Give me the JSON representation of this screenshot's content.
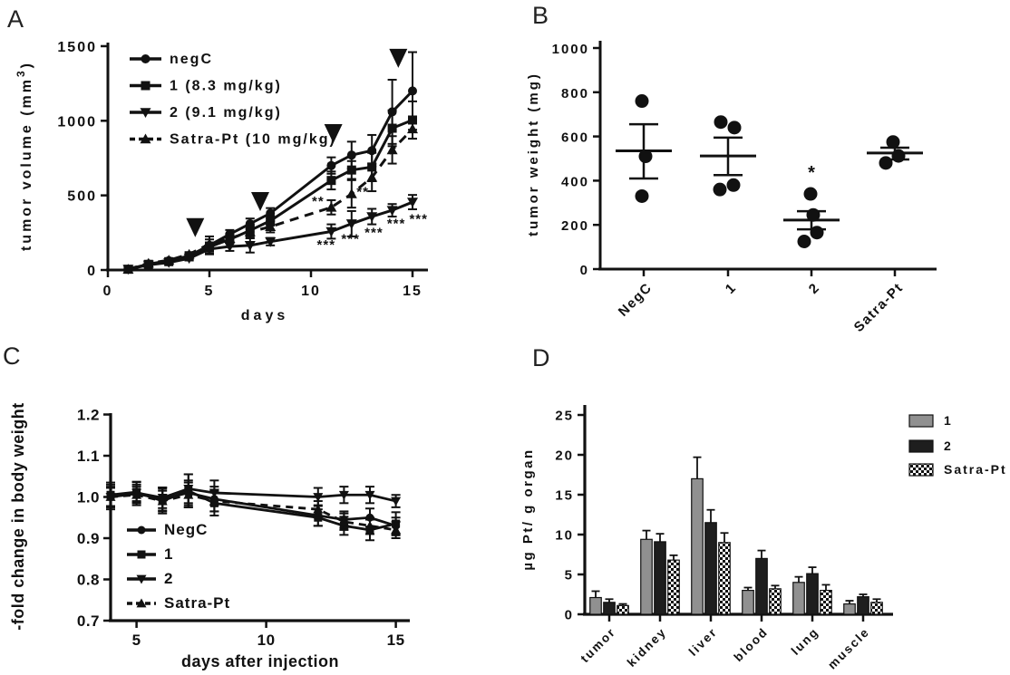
{
  "figure": {
    "background": "#ffffff",
    "panel_labels": [
      "A",
      "B",
      "C",
      "D"
    ]
  },
  "colors": {
    "ink": "#111111",
    "bar_gray": "#909090",
    "bar_dark": "#1e1e1e",
    "checker_bg": "#ffffff"
  },
  "chart_data": [
    {
      "panel": "A",
      "type": "line",
      "name": "tumor-volume",
      "xlabel": "days",
      "ylabel": "tumor volume (mm³)",
      "ylabel_rich": {
        "pre": "tumor volume (mm",
        "sup": "3",
        "post": ")"
      },
      "xlim": [
        0,
        15.7
      ],
      "ylim": [
        0,
        1500
      ],
      "xticks": [
        0,
        5,
        10,
        15
      ],
      "xtick_labels": [
        "0",
        "5",
        "10",
        "15"
      ],
      "yticks": [
        0,
        500,
        1000,
        1500
      ],
      "ytick_labels": [
        "0",
        "500",
        "1000",
        "1500"
      ],
      "grid": false,
      "legend_position": "top-left-inside",
      "x": [
        1,
        2,
        3,
        4,
        5,
        6,
        7,
        8,
        11,
        12,
        13,
        14,
        15
      ],
      "series": [
        {
          "name": "negC",
          "marker": "circle",
          "line": "solid",
          "values": [
            5,
            40,
            62,
            95,
            165,
            240,
            310,
            380,
            700,
            770,
            800,
            1060,
            1200
          ],
          "errors": [
            0,
            10,
            12,
            18,
            60,
            28,
            35,
            35,
            55,
            90,
            105,
            215,
            260
          ]
        },
        {
          "name": "1 (8.3 mg/kg)",
          "marker": "square",
          "line": "solid",
          "values": [
            5,
            38,
            56,
            88,
            155,
            205,
            265,
            330,
            600,
            670,
            690,
            950,
            1005
          ],
          "errors": [
            0,
            8,
            10,
            15,
            30,
            25,
            40,
            32,
            60,
            60,
            95,
            120,
            125
          ]
        },
        {
          "name": "2 (9.1 mg/kg)",
          "marker": "triangle-down",
          "line": "solid",
          "values": [
            5,
            34,
            50,
            78,
            140,
            158,
            165,
            190,
            258,
            310,
            358,
            400,
            455
          ],
          "errors": [
            0,
            8,
            10,
            14,
            28,
            30,
            48,
            25,
            48,
            85,
            52,
            42,
            48
          ]
        },
        {
          "name": "Satra-Pt (10 mg/kg)",
          "marker": "triangle-up",
          "line": "dashed",
          "values": [
            5,
            45,
            66,
            105,
            175,
            212,
            255,
            290,
            420,
            510,
            620,
            805,
            945
          ],
          "errors": [
            0,
            8,
            10,
            15,
            30,
            30,
            42,
            38,
            48,
            92,
            92,
            92,
            65
          ]
        }
      ],
      "treatment_arrows": [
        {
          "x": 4.3,
          "tip_y": 220
        },
        {
          "x": 7.5,
          "tip_y": 395
        },
        {
          "x": 11.1,
          "tip_y": 850
        },
        {
          "x": 14.3,
          "tip_y": 1355
        }
      ],
      "annotations": [
        {
          "text": "**",
          "x": 10.35,
          "y": 430
        },
        {
          "text": "**",
          "x": 12.55,
          "y": 495
        },
        {
          "text": "***",
          "x": 10.75,
          "y": 140
        },
        {
          "text": "***",
          "x": 11.95,
          "y": 180
        },
        {
          "text": "***",
          "x": 13.1,
          "y": 222
        },
        {
          "text": "***",
          "x": 14.2,
          "y": 282
        },
        {
          "text": "***",
          "x": 15.3,
          "y": 312
        }
      ],
      "legend": [
        "negC",
        "1 (8.3 mg/kg)",
        "2 (9.1 mg/kg)",
        "Satra-Pt (10 mg/kg)"
      ]
    },
    {
      "panel": "B",
      "type": "scatter",
      "name": "tumor-weight",
      "xlabel": "",
      "ylabel": "tumor weight (mg)",
      "ylim": [
        0,
        1000
      ],
      "yticks": [
        0,
        200,
        400,
        600,
        800,
        1000
      ],
      "ytick_labels": [
        "0",
        "200",
        "400",
        "600",
        "800",
        "1000"
      ],
      "grid": false,
      "categories": [
        "NegC",
        "1",
        "2",
        "Satra-Pt"
      ],
      "groups": [
        {
          "name": "NegC",
          "points": [
            760,
            510,
            330
          ],
          "mean": 535,
          "sem_low": 410,
          "sem_high": 655
        },
        {
          "name": "1",
          "points": [
            665,
            640,
            360,
            380
          ],
          "mean": 512,
          "sem_low": 425,
          "sem_high": 595
        },
        {
          "name": "2",
          "points": [
            340,
            245,
            165,
            125
          ],
          "mean": 222,
          "sem_low": 180,
          "sem_high": 262,
          "sig": "*",
          "sig_y": 410
        },
        {
          "name": "Satra-Pt",
          "points": [
            575,
            512,
            480
          ],
          "mean": 525,
          "sem_low": 496,
          "sem_high": 549
        }
      ]
    },
    {
      "panel": "C",
      "type": "line",
      "name": "body-weight-change",
      "xlabel": "days after injection",
      "ylabel": "-fold change in body weight",
      "xlim": [
        3.8,
        16
      ],
      "ylim": [
        0.7,
        1.2
      ],
      "xticks": [
        5,
        10,
        15
      ],
      "xtick_labels": [
        "5",
        "10",
        "15"
      ],
      "yticks": [
        0.7,
        0.8,
        0.9,
        1.0,
        1.1,
        1.2
      ],
      "ytick_labels": [
        "0.7",
        "0.8",
        "0.9",
        "1.0",
        "1.1",
        "1.2"
      ],
      "grid": false,
      "legend_position": "bottom-left-inside",
      "x": [
        4,
        5,
        6,
        7,
        8,
        12,
        13,
        14,
        15
      ],
      "series": [
        {
          "name": "NegC",
          "marker": "circle",
          "line": "solid",
          "values": [
            1.0,
            1.008,
            0.995,
            1.01,
            0.995,
            0.955,
            0.945,
            0.95,
            0.93
          ],
          "errors": [
            0.03,
            0.028,
            0.028,
            0.03,
            0.03,
            0.025,
            0.02,
            0.022,
            0.02
          ]
        },
        {
          "name": "1",
          "marker": "square",
          "line": "solid",
          "values": [
            1.005,
            1.012,
            0.99,
            1.015,
            0.985,
            0.95,
            0.93,
            0.92,
            0.935
          ],
          "errors": [
            0.03,
            0.025,
            0.03,
            0.04,
            0.03,
            0.02,
            0.022,
            0.025,
            0.028
          ]
        },
        {
          "name": "2",
          "marker": "triangle-down",
          "line": "solid",
          "values": [
            1.0,
            1.01,
            0.998,
            1.02,
            1.01,
            1.0,
            1.005,
            1.005,
            0.99
          ],
          "errors": [
            0.022,
            0.02,
            0.025,
            0.035,
            0.03,
            0.022,
            0.02,
            0.02,
            0.015
          ]
        },
        {
          "name": "Satra-Pt",
          "marker": "triangle-up",
          "line": "dashed",
          "values": [
            1.0,
            1.005,
            0.99,
            1.005,
            0.99,
            0.97,
            0.94,
            0.93,
            0.92
          ],
          "errors": [
            0.025,
            0.02,
            0.025,
            0.03,
            0.025,
            0.02,
            0.02,
            0.02,
            0.02
          ]
        }
      ],
      "legend": [
        "NegC",
        "1",
        "2",
        "Satra-Pt"
      ]
    },
    {
      "panel": "D",
      "type": "bar",
      "name": "pt-biodistribution",
      "ylabel": "µg Pt/ g organ",
      "ylim": [
        0,
        25
      ],
      "yticks": [
        0,
        5,
        10,
        15,
        20,
        25
      ],
      "ytick_labels": [
        "0",
        "5",
        "10",
        "15",
        "20",
        "25"
      ],
      "grid": false,
      "legend_position": "right-outside",
      "categories": [
        "tumor",
        "kidney",
        "liver",
        "blood",
        "lung",
        "muscle"
      ],
      "series": [
        {
          "name": "1",
          "fill": "gray",
          "values": [
            2.1,
            9.4,
            17.0,
            3.0,
            4.0,
            1.3
          ],
          "errors": [
            0.8,
            1.1,
            2.7,
            0.35,
            0.7,
            0.4
          ]
        },
        {
          "name": "2",
          "fill": "dark",
          "values": [
            1.5,
            9.1,
            11.5,
            7.0,
            5.1,
            2.2
          ],
          "errors": [
            0.4,
            1.0,
            1.6,
            1.0,
            0.8,
            0.3
          ]
        },
        {
          "name": "Satra-Pt",
          "fill": "checker",
          "values": [
            1.1,
            6.8,
            9.0,
            3.2,
            3.0,
            1.5
          ],
          "errors": [
            0.2,
            0.6,
            1.2,
            0.4,
            0.7,
            0.4
          ]
        }
      ],
      "legend": [
        "1",
        "2",
        "Satra-Pt"
      ]
    }
  ]
}
